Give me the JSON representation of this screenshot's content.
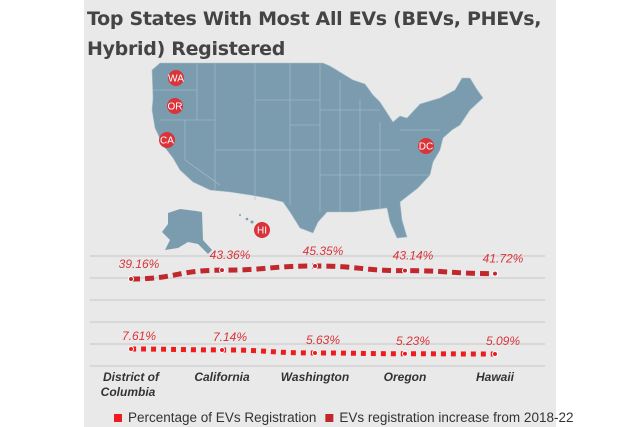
{
  "title": "Top States With Most All EVs (BEVs, PHEVs, Hybrid) Registered",
  "map": {
    "land_color": "#7b9cae",
    "marker_color": "#d9343a",
    "markers": [
      "WA",
      "OR",
      "CA",
      "DC",
      "HI"
    ]
  },
  "chart_data": {
    "type": "line",
    "categories": [
      "District of Columbia",
      "California",
      "Washington",
      "Oregon",
      "Hawaii"
    ],
    "series": [
      {
        "name": "EVs registration increase from 2018-22",
        "values": [
          39.16,
          43.36,
          45.35,
          43.14,
          41.72
        ],
        "labels": [
          "39.16%",
          "43.36%",
          "45.35%",
          "43.14%",
          "41.72%"
        ],
        "color": "#c0282e",
        "style": "dashed"
      },
      {
        "name": "Percentage of EVs Registration",
        "values": [
          7.61,
          7.14,
          5.63,
          5.23,
          5.09
        ],
        "labels": [
          "7.61%",
          "7.14%",
          "5.63%",
          "5.23%",
          "5.09%"
        ],
        "color": "#ee1c1c",
        "style": "dotted"
      }
    ],
    "legend_order": [
      "Percentage of EVs Registration",
      "EVs registration increase from 2018-22"
    ],
    "legend_position": "bottom",
    "grid": true,
    "xlabel": "",
    "ylabel": ""
  }
}
